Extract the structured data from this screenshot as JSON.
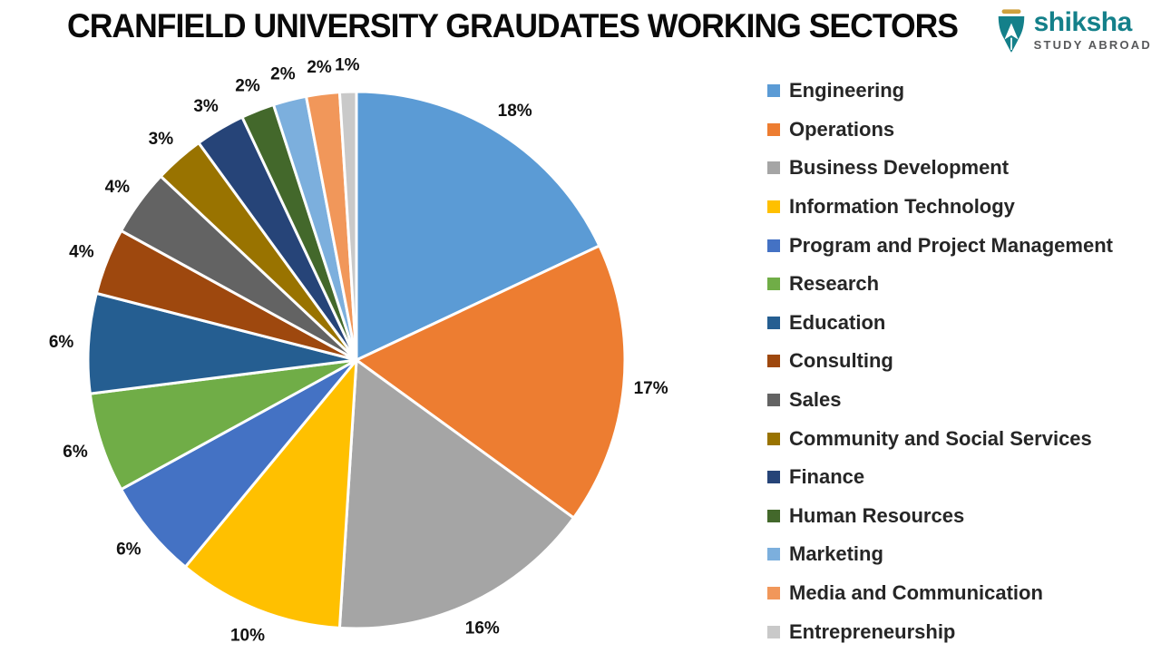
{
  "title": "CRANFIELD UNIVERSITY GRAUDATES WORKING SECTORS",
  "logo": {
    "brand": "shiksha",
    "tagline": "STUDY ABROAD",
    "brand_color": "#14808A",
    "tagline_color": "#58595B",
    "nib_teal": "#14808A",
    "nib_gold": "#CFA13D"
  },
  "chart_data": {
    "type": "pie",
    "title": "CRANFIELD UNIVERSITY GRAUDATES WORKING SECTORS",
    "legend_position": "right",
    "direction": "clockwise",
    "start_angle_deg": 0,
    "label_style": "outside-end",
    "label_suffix": "%",
    "slice_border_color": "#FFFFFF",
    "slices": [
      {
        "label": "Engineering",
        "value": 18,
        "color": "#5B9BD5"
      },
      {
        "label": "Operations",
        "value": 17,
        "color": "#ED7D31"
      },
      {
        "label": "Business Development",
        "value": 16,
        "color": "#A5A5A5"
      },
      {
        "label": "Information Technology",
        "value": 10,
        "color": "#FFC000"
      },
      {
        "label": "Program and Project Management",
        "value": 6,
        "color": "#4472C4"
      },
      {
        "label": "Research",
        "value": 6,
        "color": "#70AD47"
      },
      {
        "label": "Education",
        "value": 6,
        "color": "#255E91"
      },
      {
        "label": "Consulting",
        "value": 4,
        "color": "#9E480E"
      },
      {
        "label": "Sales",
        "value": 4,
        "color": "#636363"
      },
      {
        "label": "Community and Social Services",
        "value": 3,
        "color": "#997300"
      },
      {
        "label": "Finance",
        "value": 3,
        "color": "#264478"
      },
      {
        "label": "Human Resources",
        "value": 2,
        "color": "#43682B"
      },
      {
        "label": "Marketing",
        "value": 2,
        "color": "#7CAFDD"
      },
      {
        "label": "Media and Communication",
        "value": 2,
        "color": "#F1975A"
      },
      {
        "label": "Entrepreneurship",
        "value": 1,
        "color": "#C9C9C9"
      }
    ]
  }
}
